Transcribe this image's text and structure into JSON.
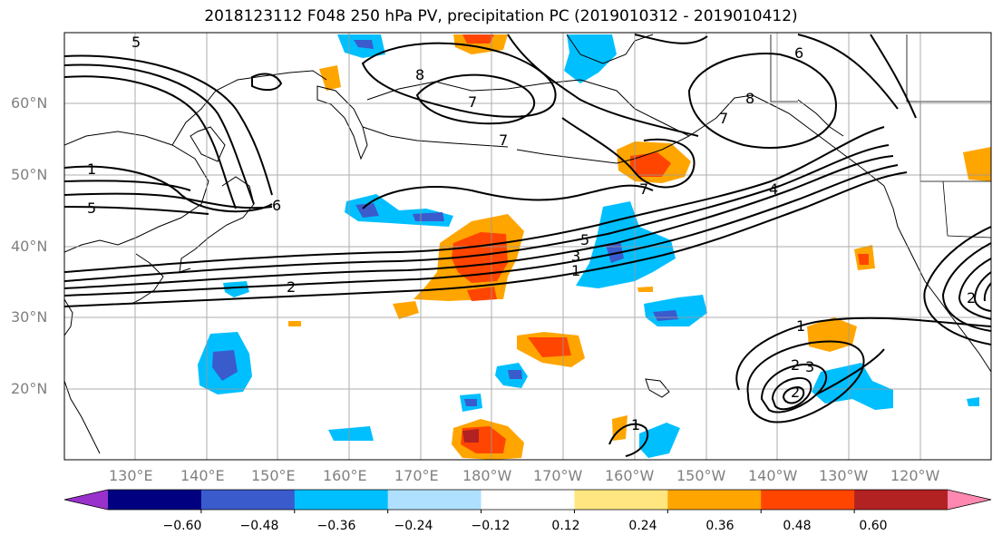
{
  "title": "2018123112 F048 250 hPa PV, precipitation PC (2019010312 - 2019010412)",
  "lat_labels": [
    "60°N",
    "50°N",
    "40°N",
    "30°N",
    "20°N"
  ],
  "lon_labels": [
    "130°E",
    "140°E",
    "150°E",
    "160°E",
    "170°E",
    "180°W",
    "170°W",
    "160°W",
    "150°W",
    "140°W",
    "130°W",
    "120°W"
  ],
  "colorbar": {
    "colors": [
      "#9932cc",
      "#000080",
      "#3a5bcc",
      "#00bfff",
      "#b0e0ff",
      "#ffffff",
      "#ffe680",
      "#ffa500",
      "#ff4500",
      "#b22222",
      "#ff88b0"
    ],
    "tick_labels": [
      "−0.60",
      "−0.48",
      "−0.36",
      "−0.24",
      "−0.12",
      "0.12",
      "0.24",
      "0.36",
      "0.48",
      "0.60"
    ]
  },
  "pv_contour_labels": [
    "5",
    "8",
    "7",
    "7",
    "7",
    "8",
    "6",
    "1",
    "5",
    "6",
    "4",
    "7",
    "5",
    "3",
    "1",
    "2",
    "1",
    "2",
    "3",
    "2",
    "1",
    "2"
  ],
  "colors": {
    "pv_contour": "#000000",
    "positive_anomaly": "#ffa500",
    "negative_anomaly": "#00bfff"
  }
}
